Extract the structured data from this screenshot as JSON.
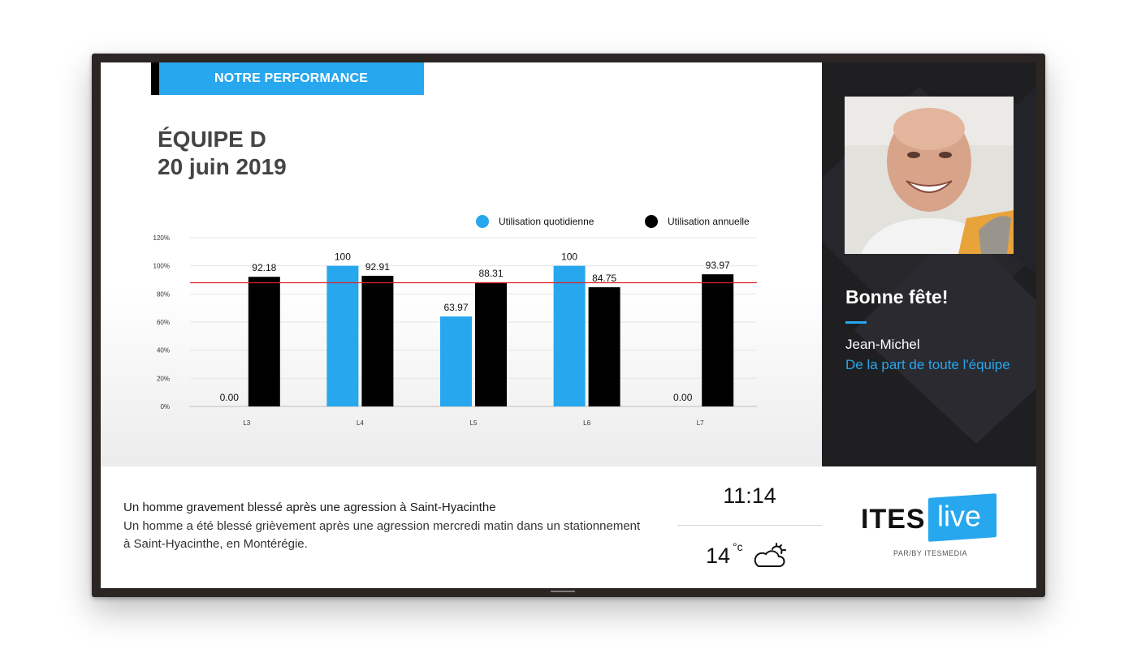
{
  "header": {
    "label": "NOTRE PERFORMANCE"
  },
  "team": {
    "title": "ÉQUIPE D",
    "date": "20 juin 2019"
  },
  "chart_data": {
    "type": "bar",
    "categories": [
      "L3",
      "L4",
      "L5",
      "L6",
      "L7"
    ],
    "series": [
      {
        "name": "Utilisation quotidienne",
        "values": [
          0.0,
          100,
          63.97,
          100,
          0.0
        ],
        "color": "#27a7ee"
      },
      {
        "name": "Utilisation annuelle",
        "values": [
          92.18,
          92.91,
          88.31,
          84.75,
          93.97
        ],
        "color": "#000000"
      }
    ],
    "value_labels": [
      [
        "0.00",
        "100",
        "63.97",
        "100",
        "0.00"
      ],
      [
        "92.18",
        "92.91",
        "88.31",
        "84.75",
        "93.97"
      ]
    ],
    "yticks": [
      "0%",
      "20%",
      "40%",
      "60%",
      "80%",
      "100%",
      "120%"
    ],
    "ylim": [
      0,
      120
    ],
    "target": 88,
    "target_color": "#e0242a",
    "legend_position": "top-right",
    "title": "",
    "xlabel": "",
    "ylabel": ""
  },
  "birthday": {
    "title": "Bonne fête!",
    "name": "Jean-Michel",
    "from": "De la part de toute l'équipe"
  },
  "news": {
    "headline": "Un homme gravement blessé après une agression à Saint-Hyacinthe",
    "body": "Un homme a été blessé grièvement après une agression mercredi matin dans un stationnement à Saint-Hyacinthe, en Montérégie."
  },
  "clock": {
    "time": "11:14"
  },
  "weather": {
    "temperature": "14",
    "unit": "°c",
    "icon": "partly-cloudy-icon"
  },
  "branding": {
    "ites": "ITES",
    "live": "live",
    "sub": "PAR/BY ITESMEDIA"
  },
  "colors": {
    "accent": "#27a7ee",
    "dark_panel": "#1f1f22"
  }
}
